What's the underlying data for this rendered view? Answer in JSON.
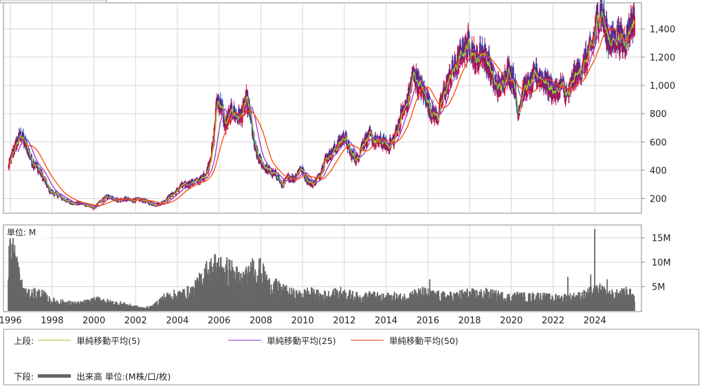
{
  "chart_data": [
    {
      "type": "candlestick",
      "panel": "price",
      "x_ticks": [
        "1996",
        "1998",
        "2000",
        "2002",
        "2004",
        "2006",
        "2008",
        "2010",
        "2012",
        "2014",
        "2016",
        "2018",
        "2020",
        "2022",
        "2024"
      ],
      "y_ticks": [
        "200",
        "400",
        "600",
        "800",
        "1,000",
        "1,200",
        "1,400"
      ],
      "ylim": [
        100,
        1580
      ],
      "xlim": [
        1995.7,
        2026.2
      ],
      "grid": true,
      "price_path": [
        [
          1995.9,
          420
        ],
        [
          1996.2,
          560
        ],
        [
          1996.5,
          650
        ],
        [
          1996.8,
          560
        ],
        [
          1997.0,
          470
        ],
        [
          1997.3,
          420
        ],
        [
          1997.6,
          340
        ],
        [
          1997.9,
          250
        ],
        [
          1998.2,
          230
        ],
        [
          1998.5,
          200
        ],
        [
          1998.8,
          175
        ],
        [
          1999.1,
          165
        ],
        [
          1999.4,
          165
        ],
        [
          1999.7,
          150
        ],
        [
          2000.0,
          130
        ],
        [
          2000.3,
          175
        ],
        [
          2000.6,
          210
        ],
        [
          2000.9,
          200
        ],
        [
          2001.2,
          185
        ],
        [
          2001.5,
          195
        ],
        [
          2001.8,
          185
        ],
        [
          2002.1,
          190
        ],
        [
          2002.4,
          185
        ],
        [
          2002.7,
          165
        ],
        [
          2003.0,
          155
        ],
        [
          2003.3,
          170
        ],
        [
          2003.6,
          210
        ],
        [
          2003.9,
          240
        ],
        [
          2004.2,
          290
        ],
        [
          2004.5,
          300
        ],
        [
          2004.8,
          320
        ],
        [
          2005.1,
          330
        ],
        [
          2005.4,
          380
        ],
        [
          2005.7,
          560
        ],
        [
          2005.9,
          900
        ],
        [
          2006.1,
          850
        ],
        [
          2006.3,
          720
        ],
        [
          2006.6,
          820
        ],
        [
          2006.9,
          770
        ],
        [
          2007.1,
          800
        ],
        [
          2007.3,
          900
        ],
        [
          2007.5,
          780
        ],
        [
          2007.7,
          560
        ],
        [
          2007.9,
          480
        ],
        [
          2008.2,
          420
        ],
        [
          2008.5,
          380
        ],
        [
          2008.8,
          360
        ],
        [
          2009.0,
          290
        ],
        [
          2009.3,
          350
        ],
        [
          2009.6,
          340
        ],
        [
          2009.9,
          420
        ],
        [
          2010.2,
          330
        ],
        [
          2010.5,
          300
        ],
        [
          2010.8,
          360
        ],
        [
          2011.1,
          480
        ],
        [
          2011.4,
          520
        ],
        [
          2011.7,
          580
        ],
        [
          2012.0,
          640
        ],
        [
          2012.3,
          520
        ],
        [
          2012.6,
          470
        ],
        [
          2012.9,
          600
        ],
        [
          2013.2,
          640
        ],
        [
          2013.5,
          600
        ],
        [
          2013.8,
          600
        ],
        [
          2014.1,
          570
        ],
        [
          2014.4,
          620
        ],
        [
          2014.7,
          780
        ],
        [
          2015.0,
          870
        ],
        [
          2015.3,
          1080
        ],
        [
          2015.6,
          1000
        ],
        [
          2015.9,
          920
        ],
        [
          2016.2,
          800
        ],
        [
          2016.5,
          780
        ],
        [
          2016.8,
          960
        ],
        [
          2017.1,
          1080
        ],
        [
          2017.4,
          1150
        ],
        [
          2017.7,
          1250
        ],
        [
          2018.0,
          1300
        ],
        [
          2018.3,
          1160
        ],
        [
          2018.6,
          1250
        ],
        [
          2018.9,
          1150
        ],
        [
          2019.2,
          1000
        ],
        [
          2019.5,
          980
        ],
        [
          2019.8,
          1100
        ],
        [
          2020.1,
          1050
        ],
        [
          2020.3,
          810
        ],
        [
          2020.6,
          980
        ],
        [
          2020.9,
          1000
        ],
        [
          2021.2,
          1080
        ],
        [
          2021.5,
          1050
        ],
        [
          2021.8,
          990
        ],
        [
          2022.1,
          950
        ],
        [
          2022.4,
          1000
        ],
        [
          2022.7,
          920
        ],
        [
          2023.0,
          1060
        ],
        [
          2023.3,
          1100
        ],
        [
          2023.6,
          1180
        ],
        [
          2023.9,
          1300
        ],
        [
          2024.1,
          1450
        ],
        [
          2024.3,
          1540
        ],
        [
          2024.5,
          1380
        ],
        [
          2024.8,
          1300
        ],
        [
          2025.1,
          1350
        ],
        [
          2025.4,
          1300
        ],
        [
          2025.7,
          1420
        ],
        [
          2025.9,
          1470
        ]
      ],
      "series": [
        {
          "name": "単純移動平均(5)",
          "color": "#9acd32",
          "window": 5
        },
        {
          "name": "単純移動平均(25)",
          "color": "#9933cc",
          "window": 25
        },
        {
          "name": "単純移動平均(50)",
          "color": "#ff4400",
          "window": 50
        }
      ]
    },
    {
      "type": "bar",
      "panel": "volume",
      "unit_label": "単位: M",
      "y_ticks": [
        "5M",
        "10M",
        "15M"
      ],
      "ylim": [
        0,
        17.5
      ],
      "volume_path": [
        [
          1995.9,
          10
        ],
        [
          1996.1,
          12.5
        ],
        [
          1996.3,
          9
        ],
        [
          1996.5,
          5
        ],
        [
          1996.8,
          3
        ],
        [
          1997.2,
          3.5
        ],
        [
          1997.6,
          3
        ],
        [
          1997.9,
          2
        ],
        [
          1998.3,
          1.8
        ],
        [
          1998.8,
          1.5
        ],
        [
          1999.3,
          1.4
        ],
        [
          1999.8,
          1.8
        ],
        [
          2000.3,
          2.2
        ],
        [
          2000.8,
          1.6
        ],
        [
          2001.3,
          1.4
        ],
        [
          2001.8,
          1
        ],
        [
          2002.3,
          0.6
        ],
        [
          2002.8,
          0.8
        ],
        [
          2003.3,
          2.5
        ],
        [
          2003.8,
          3
        ],
        [
          2004.3,
          3.3
        ],
        [
          2004.8,
          4
        ],
        [
          2005.3,
          7
        ],
        [
          2005.8,
          8.5
        ],
        [
          2006.2,
          8
        ],
        [
          2006.6,
          7.5
        ],
        [
          2007.0,
          6
        ],
        [
          2007.4,
          6.5
        ],
        [
          2007.7,
          8.5
        ],
        [
          2008.0,
          7.5
        ],
        [
          2008.4,
          5
        ],
        [
          2008.8,
          4.5
        ],
        [
          2009.3,
          3.5
        ],
        [
          2009.8,
          3
        ],
        [
          2010.3,
          3.5
        ],
        [
          2010.8,
          3
        ],
        [
          2011.3,
          3
        ],
        [
          2011.8,
          3.5
        ],
        [
          2012.3,
          3
        ],
        [
          2012.8,
          2.5
        ],
        [
          2013.3,
          3
        ],
        [
          2013.8,
          2.5
        ],
        [
          2014.3,
          2.8
        ],
        [
          2014.8,
          2.5
        ],
        [
          2015.3,
          3.2
        ],
        [
          2015.8,
          3.5
        ],
        [
          2016.3,
          3
        ],
        [
          2016.8,
          2.8
        ],
        [
          2017.3,
          2.8
        ],
        [
          2017.8,
          3.3
        ],
        [
          2018.3,
          3.2
        ],
        [
          2018.8,
          3.3
        ],
        [
          2019.3,
          3
        ],
        [
          2019.8,
          2.6
        ],
        [
          2020.3,
          2.8
        ],
        [
          2020.8,
          2.6
        ],
        [
          2021.3,
          2.8
        ],
        [
          2021.8,
          2.5
        ],
        [
          2022.3,
          2.5
        ],
        [
          2022.8,
          2.6
        ],
        [
          2023.3,
          2.8
        ],
        [
          2023.8,
          3.5
        ],
        [
          2024.2,
          4
        ],
        [
          2024.5,
          3.5
        ],
        [
          2024.9,
          3
        ],
        [
          2025.3,
          3.3
        ],
        [
          2025.7,
          3.2
        ],
        [
          2025.95,
          2.5
        ]
      ],
      "volume_spikes": [
        [
          1996.2,
          13.5
        ],
        [
          2007.6,
          10.8
        ],
        [
          2016.1,
          6.5
        ],
        [
          2022.7,
          7
        ],
        [
          2023.8,
          7.5
        ],
        [
          2024.0,
          16.8
        ],
        [
          2024.6,
          6.5
        ],
        [
          2025.5,
          5
        ]
      ]
    }
  ],
  "legend": {
    "upper_label": "上段:",
    "lower_label": "下段:",
    "ma5": "単純移動平均(5)",
    "ma25": "単純移動平均(25)",
    "ma50": "単純移動平均(50)",
    "volume": "出来高 単位:(M株/口/枚)",
    "colors": {
      "ma5": "#9acd32",
      "ma25": "#9933cc",
      "ma50": "#ff4400",
      "volume": "#666666",
      "up": "#e8002a",
      "down": "#1a3fb0"
    }
  }
}
